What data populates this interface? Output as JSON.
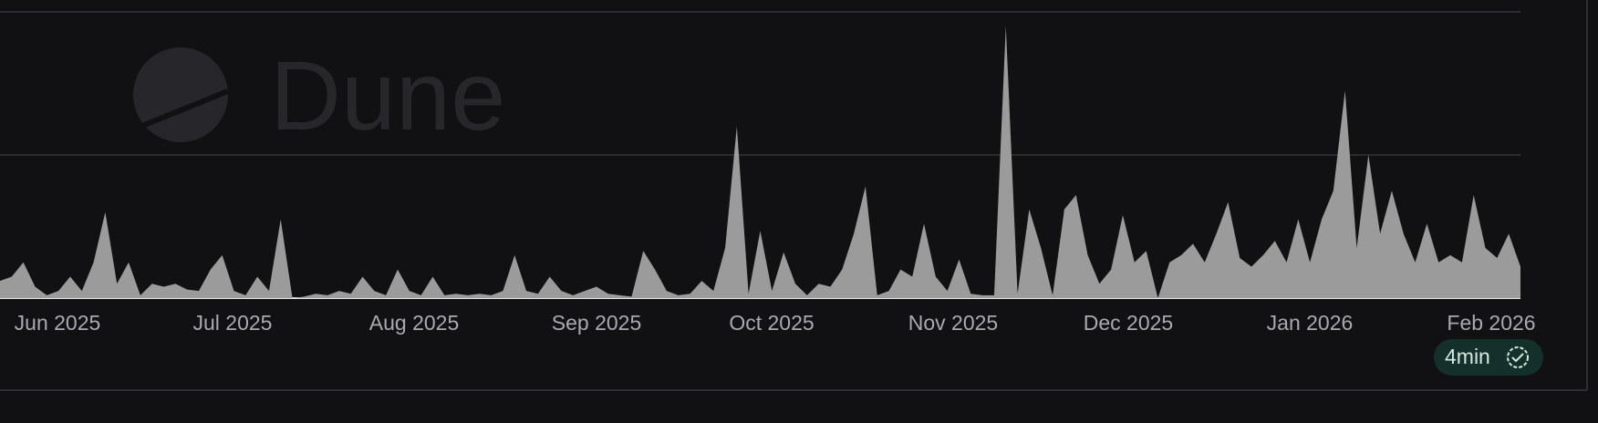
{
  "chart_data": {
    "type": "area",
    "watermark": "Dune",
    "badge": "4min",
    "x_labels": [
      "Jun 2025",
      "Jul 2025",
      "Aug 2025",
      "Sep 2025",
      "Oct 2025",
      "Nov 2025",
      "Dec 2025",
      "Jan 2026",
      "Feb 2026"
    ],
    "values": [
      0.12,
      0.15,
      0.25,
      0.08,
      0.02,
      0.05,
      0.15,
      0.05,
      0.25,
      0.6,
      0.1,
      0.25,
      0.02,
      0.1,
      0.08,
      0.1,
      0.06,
      0.05,
      0.2,
      0.3,
      0.05,
      0.02,
      0.15,
      0.05,
      0.55,
      0,
      0.01,
      0.03,
      0.02,
      0.05,
      0.03,
      0.15,
      0.05,
      0.02,
      0.2,
      0.05,
      0.02,
      0.15,
      0.02,
      0.03,
      0.02,
      0.03,
      0.02,
      0.05,
      0.3,
      0.05,
      0.03,
      0.15,
      0.05,
      0.02,
      0.05,
      0.08,
      0.03,
      0.02,
      0.01,
      0.33,
      0.2,
      0.05,
      0.02,
      0.03,
      0.12,
      0.05,
      0.35,
      1.2,
      0.03,
      0.47,
      0.05,
      0.32,
      0.1,
      0.02,
      0.1,
      0.08,
      0.2,
      0.45,
      0.78,
      0.02,
      0.05,
      0.2,
      0.15,
      0.52,
      0.15,
      0.05,
      0.27,
      0.03,
      0.02,
      0.02,
      1.9,
      0.03,
      0.62,
      0.35,
      0.02,
      0.62,
      0.72,
      0.3,
      0.1,
      0.2,
      0.58,
      0.25,
      0.33,
      0,
      0.25,
      0.3,
      0.38,
      0.25,
      0.45,
      0.67,
      0.28,
      0.22,
      0.3,
      0.4,
      0.25,
      0.55,
      0.25,
      0.55,
      0.75,
      1.45,
      0.35,
      1.0,
      0.45,
      0.75,
      0.45,
      0.25,
      0.52,
      0.25,
      0.3,
      0.25,
      0.72,
      0.35,
      0.28,
      0.45,
      0.22
    ],
    "color": "#9b9b9b",
    "ylim": [
      0,
      2
    ],
    "yticks": [
      0,
      1,
      2
    ],
    "grid": true
  }
}
